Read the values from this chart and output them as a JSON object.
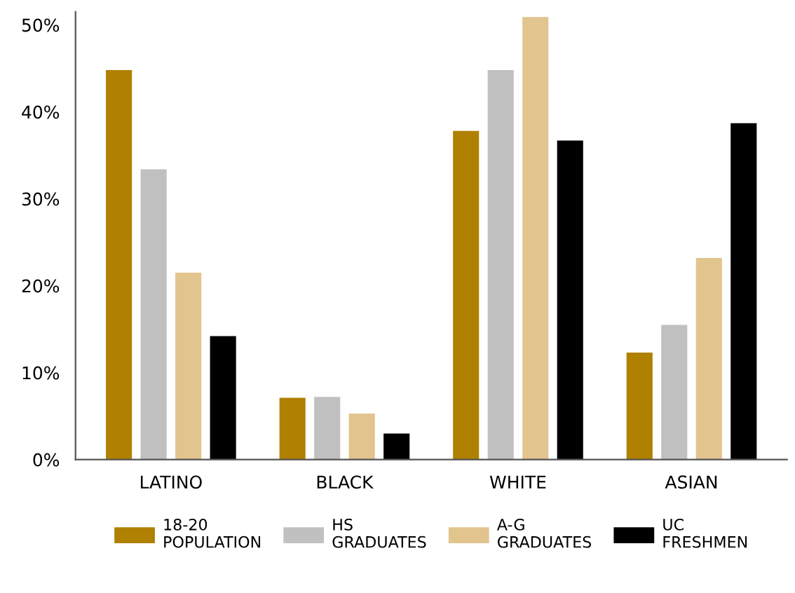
{
  "chart_data": {
    "type": "bar",
    "categories": [
      "LATINO",
      "BLACK",
      "WHITE",
      "ASIAN"
    ],
    "series": [
      {
        "name": "18-20\nPOPULATION",
        "color": "#b08000",
        "values": [
          44.8,
          7.1,
          37.8,
          12.3
        ]
      },
      {
        "name": "HS\nGRADUATES",
        "color": "#c0c0c0",
        "values": [
          33.4,
          7.2,
          44.8,
          15.5
        ]
      },
      {
        "name": "A-G\nGRADUATES",
        "color": "#e2c48e",
        "values": [
          21.5,
          5.3,
          50.9,
          23.2
        ]
      },
      {
        "name": "UC\nFRESHMEN",
        "color": "#000000",
        "values": [
          14.2,
          3.0,
          36.7,
          38.7
        ]
      }
    ],
    "ylim": [
      0,
      51.5
    ],
    "yticks": [
      {
        "value": 0,
        "label": "0%"
      },
      {
        "value": 10,
        "label": "10%"
      },
      {
        "value": 20,
        "label": "20%"
      },
      {
        "value": 30,
        "label": "30%"
      },
      {
        "value": 40,
        "label": "40%"
      },
      {
        "value": 50,
        "label": "50%"
      }
    ],
    "grid": false,
    "legend": "bottom"
  }
}
